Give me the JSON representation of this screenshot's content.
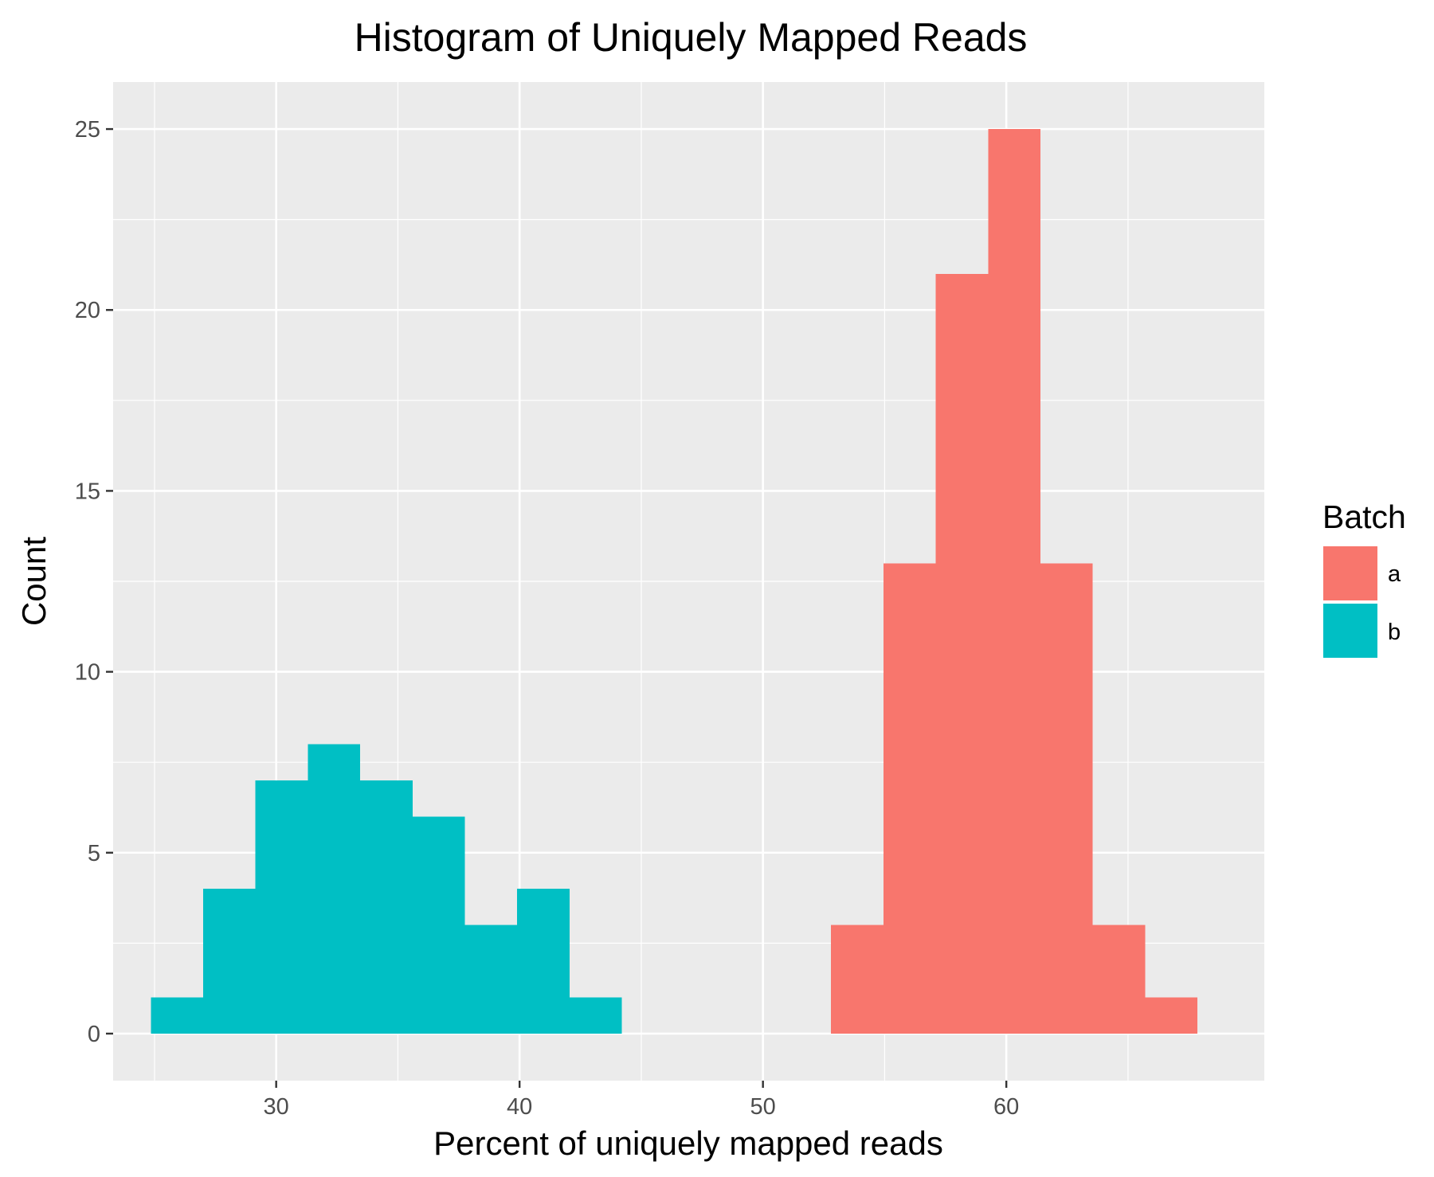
{
  "chart_data": {
    "type": "bar",
    "title": "Histogram of Uniquely Mapped Reads",
    "xlabel": "Percent of uniquely mapped reads",
    "ylabel": "Count",
    "xlim": [
      23.3,
      70.6
    ],
    "ylim": [
      -1.3,
      26.3
    ],
    "x_ticks": [
      30,
      40,
      50,
      60
    ],
    "x_tick_labels": [
      "30",
      "40",
      "50",
      "60"
    ],
    "y_ticks": [
      0,
      5,
      10,
      15,
      20,
      25
    ],
    "y_tick_labels": [
      "0",
      "5",
      "10",
      "15",
      "20",
      "25"
    ],
    "grid": true,
    "legend": {
      "title": "Batch",
      "position": "right",
      "entries": [
        {
          "label": "a",
          "color": "#F8766D"
        },
        {
          "label": "b",
          "color": "#00BFC4"
        }
      ]
    },
    "bin_width": 2.15,
    "series": [
      {
        "name": "a",
        "color": "#F8766D",
        "bins": [
          {
            "x0": 52.8,
            "x1": 54.95,
            "count": 3
          },
          {
            "x0": 54.95,
            "x1": 57.1,
            "count": 13
          },
          {
            "x0": 57.1,
            "x1": 59.25,
            "count": 21
          },
          {
            "x0": 59.25,
            "x1": 61.4,
            "count": 25
          },
          {
            "x0": 61.4,
            "x1": 63.55,
            "count": 13
          },
          {
            "x0": 63.55,
            "x1": 65.7,
            "count": 3
          },
          {
            "x0": 65.7,
            "x1": 67.85,
            "count": 1
          }
        ]
      },
      {
        "name": "b",
        "color": "#00BFC4",
        "bins": [
          {
            "x0": 24.85,
            "x1": 27.0,
            "count": 1
          },
          {
            "x0": 27.0,
            "x1": 29.15,
            "count": 4
          },
          {
            "x0": 29.15,
            "x1": 31.3,
            "count": 7
          },
          {
            "x0": 31.3,
            "x1": 33.45,
            "count": 8
          },
          {
            "x0": 33.45,
            "x1": 35.6,
            "count": 7
          },
          {
            "x0": 35.6,
            "x1": 37.75,
            "count": 6
          },
          {
            "x0": 37.75,
            "x1": 39.9,
            "count": 3
          },
          {
            "x0": 39.9,
            "x1": 42.05,
            "count": 4
          },
          {
            "x0": 42.05,
            "x1": 44.2,
            "count": 1
          }
        ]
      }
    ]
  }
}
